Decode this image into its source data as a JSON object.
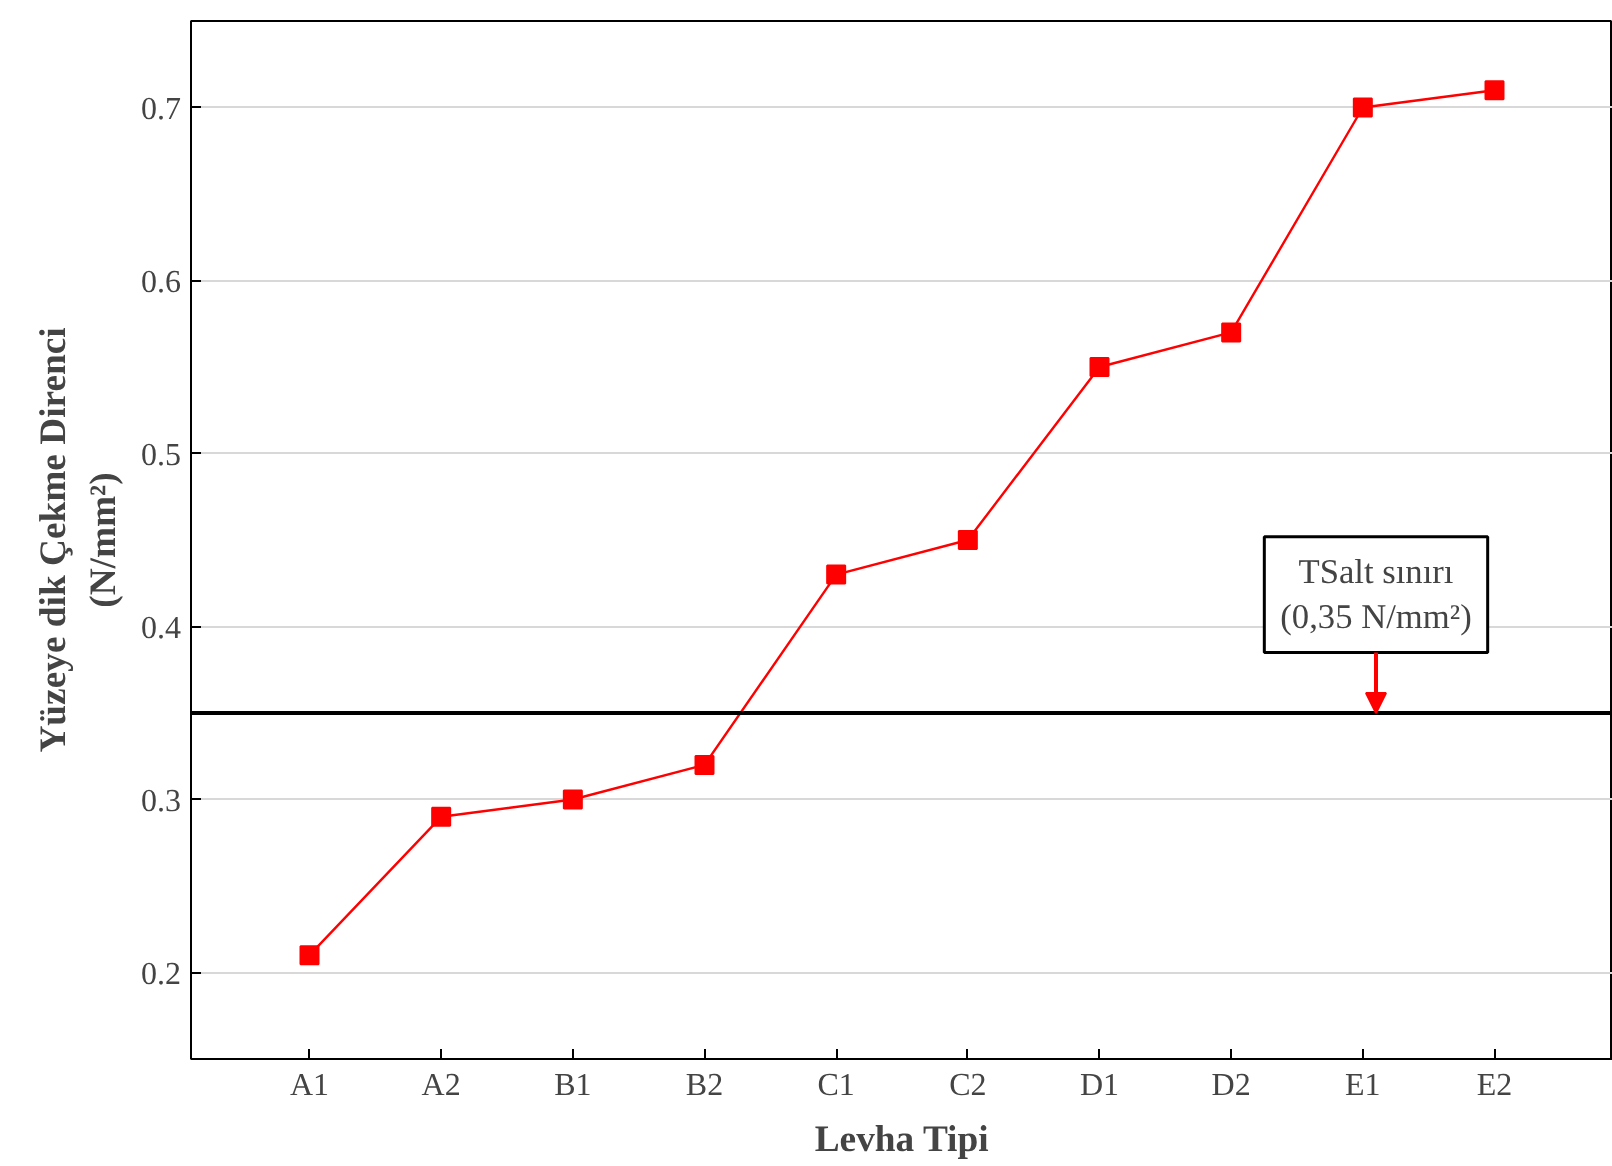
{
  "chart_data": {
    "type": "line",
    "xlabel": "Levha Tipi",
    "ylabel": "Yüzeye dik Çekme Direnci\n(N/mm²)",
    "categories": [
      "A1",
      "A2",
      "B1",
      "B2",
      "C1",
      "C2",
      "D1",
      "D2",
      "E1",
      "E2"
    ],
    "series": [
      {
        "color": "#ff0000",
        "values": [
          0.21,
          0.29,
          0.3,
          0.32,
          0.43,
          0.45,
          0.55,
          0.57,
          0.7,
          0.71
        ]
      }
    ],
    "ylim": [
      0.15,
      0.75
    ],
    "yticks": [
      0.2,
      0.3,
      0.4,
      0.5,
      0.6,
      0.7
    ],
    "grid": "y",
    "marker": "square",
    "line_style": "solid",
    "ref_lines": [
      {
        "axis": "y",
        "value": 0.35,
        "label": "TSalt sınırı\n(0,35 N/mm²)",
        "color": "#000000",
        "line_style": "solid"
      }
    ]
  }
}
